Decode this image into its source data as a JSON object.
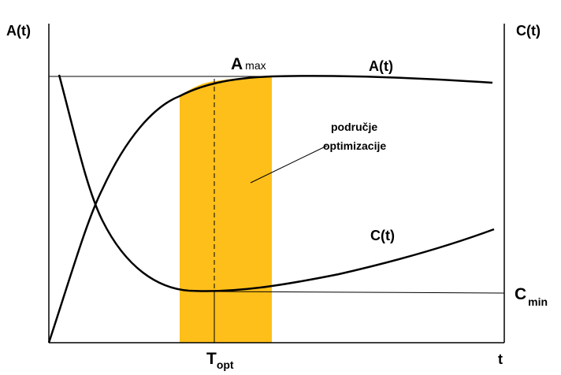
{
  "left_axis_label": "A(t)",
  "right_axis_label": "C(t)",
  "amax": {
    "main": "A",
    "sub": "max"
  },
  "a_curve_label": "A(t)",
  "region_label": [
    "područje",
    "optimizacije"
  ],
  "c_curve_label": "C(t)",
  "cmin": {
    "main": "C",
    "sub": "min"
  },
  "topt": {
    "main": "T",
    "sub": "opt"
  },
  "x_axis_label": "t"
}
